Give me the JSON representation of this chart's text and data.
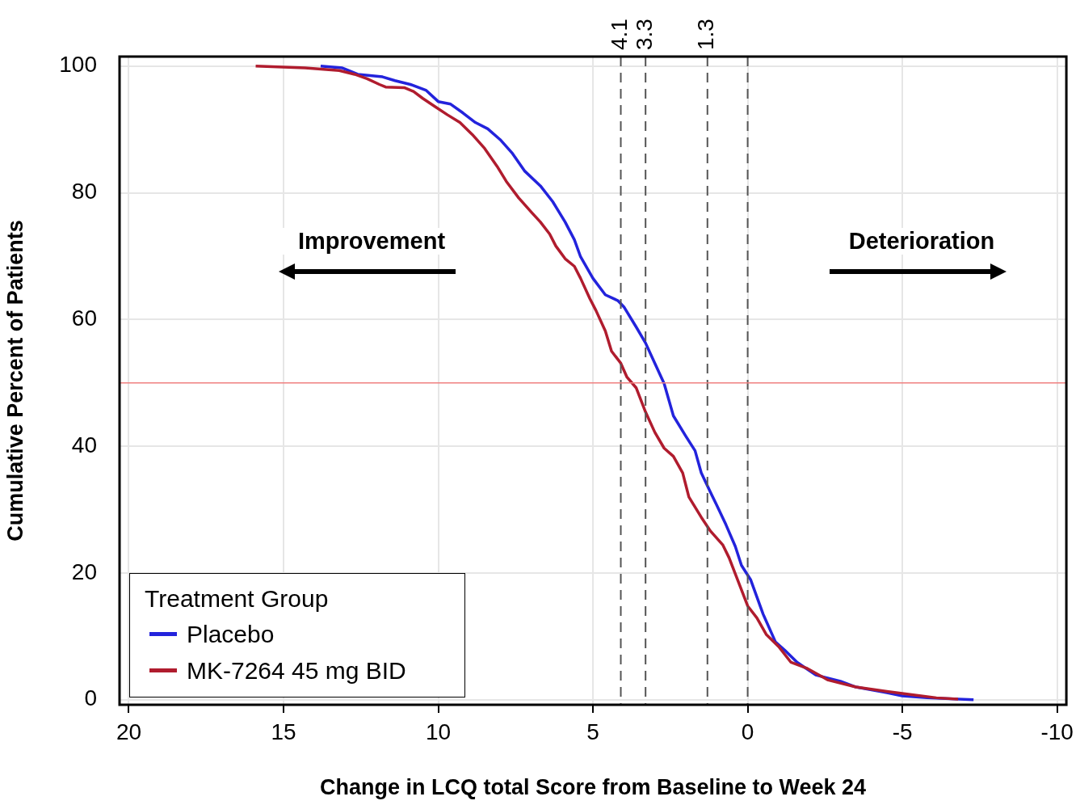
{
  "chart_data": {
    "type": "line",
    "xlabel": "Change in LCQ total Score from Baseline to Week 24",
    "ylabel": "Cumulative Percent of Patients",
    "legend_title": "Treatment Group",
    "legend": "bottom left",
    "grid": true,
    "marker": "none",
    "line_style": "solid",
    "xlim": [
      20.3,
      -10.3
    ],
    "xticks": [
      20,
      15,
      10,
      5,
      0,
      -5,
      -10
    ],
    "ylim": [
      -0.8,
      101.5
    ],
    "yticks": [
      0,
      20,
      40,
      60,
      80,
      100
    ],
    "annotations": [
      "Improvement",
      "Deterioration"
    ],
    "ref_lines": [
      {
        "axis": "x",
        "value": 4.1,
        "label": "4.1",
        "color": "#555555",
        "line_style": "dashed"
      },
      {
        "axis": "x",
        "value": 3.3,
        "label": "3.3",
        "color": "#555555",
        "line_style": "dashed"
      },
      {
        "axis": "x",
        "value": 1.3,
        "label": "1.3",
        "color": "#555555",
        "line_style": "dashed"
      },
      {
        "axis": "x",
        "value": 0,
        "color": "#555555",
        "line_style": "dashed"
      },
      {
        "axis": "y",
        "value": 50,
        "color": "#f08080",
        "line_style": "solid"
      }
    ],
    "series": [
      {
        "name": "Placebo",
        "color": "#2323dc",
        "x": [
          13.8,
          13.1,
          13.0,
          12.6,
          11.8,
          11.4,
          10.9,
          10.4,
          10.0,
          9.6,
          9.2,
          8.8,
          8.4,
          8.0,
          7.6,
          7.2,
          6.7,
          6.3,
          5.9,
          5.6,
          5.4,
          5.0,
          4.6,
          4.2,
          4.0,
          3.6,
          3.3,
          3.0,
          2.7,
          2.4,
          2.0,
          1.7,
          1.5,
          1.2,
          1.0,
          0.7,
          0.4,
          0.2,
          -0.1,
          -0.5,
          -0.9,
          -1.2,
          -1.6,
          -2.2,
          -3.0,
          -3.5,
          -4.5,
          -5.0,
          -5.8,
          -7.3
        ],
        "values": [
          100.0,
          99.7,
          99.5,
          98.7,
          98.3,
          97.7,
          97.1,
          96.2,
          94.4,
          94.0,
          92.6,
          91.1,
          90.1,
          88.4,
          86.2,
          83.4,
          81.1,
          78.6,
          75.4,
          72.6,
          69.9,
          66.5,
          63.9,
          63.0,
          62.0,
          58.8,
          56.3,
          53.1,
          49.9,
          44.8,
          41.6,
          39.3,
          35.8,
          32.7,
          30.7,
          27.6,
          24.2,
          21.2,
          18.9,
          13.5,
          9.1,
          7.8,
          5.9,
          3.9,
          2.9,
          2.0,
          1.1,
          0.6,
          0.3,
          0
        ]
      },
      {
        "name": "MK-7264 45 mg BID",
        "color": "#b01c2e",
        "x": [
          15.9,
          14.3,
          13.2,
          12.7,
          12.3,
          11.9,
          11.7,
          11.1,
          10.8,
          10.5,
          10.1,
          9.7,
          9.3,
          8.9,
          8.5,
          8.1,
          7.8,
          7.4,
          7.0,
          6.7,
          6.4,
          6.2,
          5.9,
          5.6,
          5.4,
          5.1,
          4.9,
          4.6,
          4.4,
          4.1,
          3.9,
          3.6,
          3.3,
          3.0,
          2.7,
          2.4,
          2.1,
          2.0,
          1.9,
          1.5,
          1.2,
          0.8,
          0.6,
          0.3,
          0,
          -0.3,
          -0.6,
          -1.0,
          -1.4,
          -1.9,
          -2.6,
          -3.5,
          -4.5,
          -5.3,
          -6.1,
          -6.8
        ],
        "values": [
          100,
          99.7,
          99.3,
          98.7,
          98.0,
          97.1,
          96.7,
          96.6,
          96.0,
          94.9,
          93.6,
          92.3,
          91.1,
          89.2,
          87.0,
          84.2,
          81.8,
          79.2,
          77.0,
          75.4,
          73.5,
          71.6,
          69.6,
          68.4,
          66.5,
          63.3,
          61.4,
          58.2,
          55.0,
          53.1,
          50.9,
          49.2,
          45.4,
          42.2,
          39.7,
          38.4,
          35.8,
          33.9,
          32.0,
          28.8,
          26.6,
          24.4,
          22.4,
          18.6,
          14.8,
          12.9,
          10.3,
          8.4,
          5.9,
          5.0,
          3.1,
          2.0,
          1.3,
          0.8,
          0.3,
          0.1
        ]
      }
    ]
  }
}
